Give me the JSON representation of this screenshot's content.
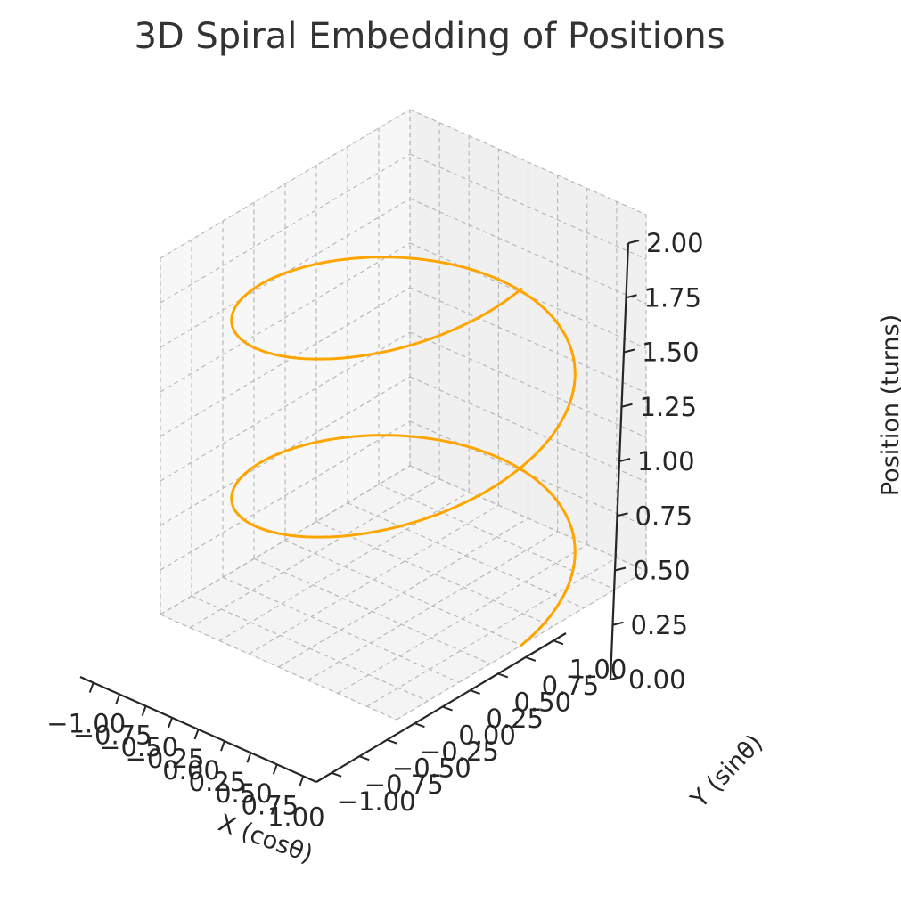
{
  "chart_data": {
    "type": "line3d",
    "title": "3D Spiral Embedding of Positions",
    "xlabel": "X (cosθ)",
    "ylabel": "Y (sinθ)",
    "zlabel": "Position (turns)",
    "xlim": [
      -1.0,
      1.0
    ],
    "ylim": [
      -1.0,
      1.0
    ],
    "zlim": [
      0.0,
      2.0
    ],
    "xticks": [
      "−1.00",
      "−0.75",
      "−0.50",
      "−0.25",
      "0.00",
      "0.25",
      "0.50",
      "0.75",
      "1.00"
    ],
    "yticks": [
      "−1.00",
      "−0.75",
      "−0.50",
      "−0.25",
      "0.00",
      "0.25",
      "0.50",
      "0.75",
      "1.00"
    ],
    "zticks": [
      "0.00",
      "0.25",
      "0.50",
      "0.75",
      "1.00",
      "1.25",
      "1.50",
      "1.75",
      "2.00"
    ],
    "grid": true,
    "series": [
      {
        "color": "#FFA500",
        "parametric": {
          "x": "cos(2πt)",
          "y": "sin(2πt)",
          "z": "t"
        },
        "t_range": [
          0.0,
          2.0
        ],
        "samples": 400
      }
    ]
  }
}
